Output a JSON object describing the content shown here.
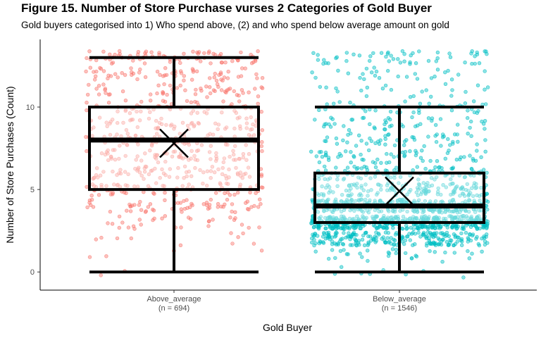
{
  "chart_data": {
    "type": "boxplot with jittered points",
    "title": "Figure 15. Number of Store Purchase vurses 2 Categories of Gold Buyer",
    "subtitle": "Gold buyers categorised into 1) Who spend above, (2) and who spend below average amount on gold",
    "xlabel": "Gold Buyer",
    "ylabel": "Number of Store Purchases (Count)",
    "ylim": [
      -1.1,
      14.1
    ],
    "yticks": [
      0,
      5,
      10
    ],
    "grid": false,
    "legend": "none",
    "categories": [
      {
        "name": "Above_average",
        "n_label": "(n = 694)",
        "n": 694,
        "color": "#F8766D",
        "box": {
          "min": 0,
          "q1": 5,
          "median": 8,
          "q3": 10,
          "max": 13
        },
        "mean": 7.8
      },
      {
        "name": "Below_average",
        "n_label": "(n = 1546)",
        "n": 1546,
        "color": "#00BFC4",
        "box": {
          "min": 0,
          "q1": 3,
          "median": 4,
          "q3": 6,
          "max": 10
        },
        "mean": 4.9
      }
    ]
  }
}
